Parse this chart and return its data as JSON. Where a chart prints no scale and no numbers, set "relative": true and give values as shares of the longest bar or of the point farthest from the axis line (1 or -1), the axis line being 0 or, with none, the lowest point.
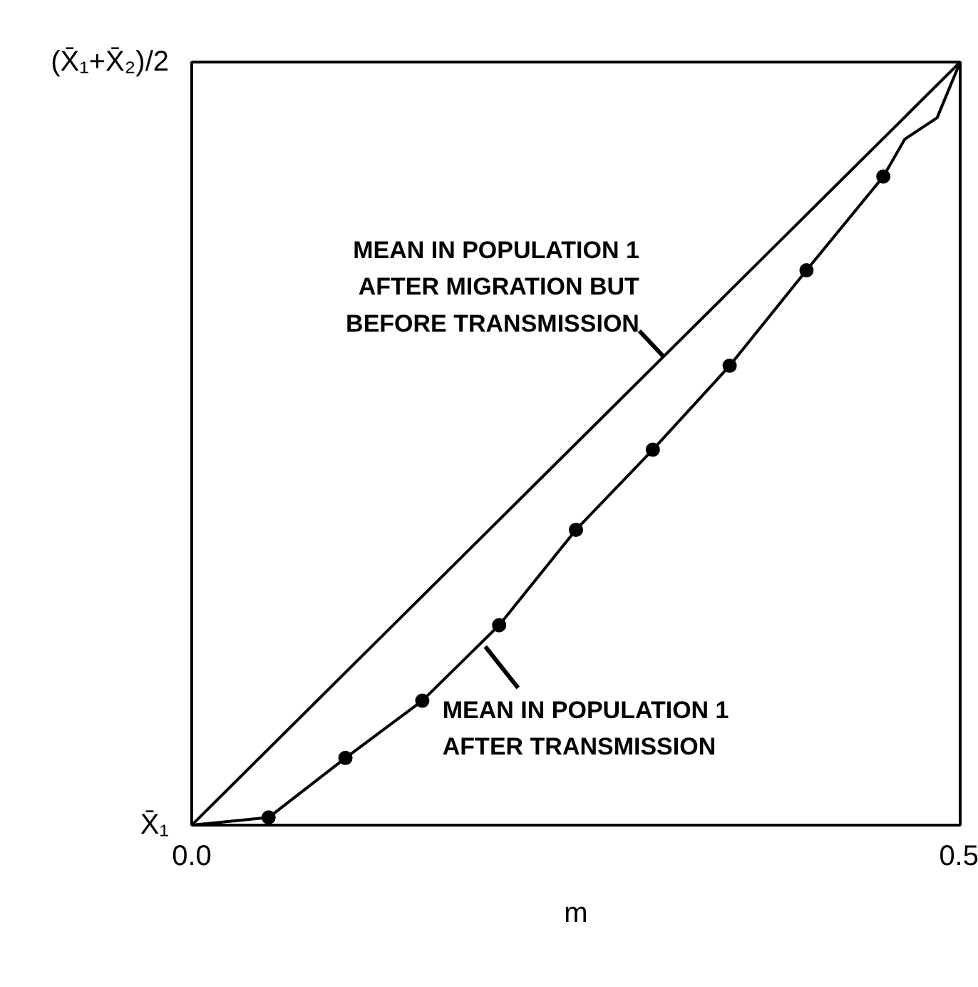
{
  "chart_data": {
    "type": "line",
    "xlabel": "m",
    "xlim": [
      0,
      0.5
    ],
    "ylim": [
      0,
      1
    ],
    "xticks": [
      {
        "value": 0,
        "label": "0.0"
      },
      {
        "value": 0.5,
        "label": "0.5"
      }
    ],
    "relative": true,
    "series": [
      {
        "color": "#000000",
        "marker": "none",
        "x": [
          0,
          0.5
        ],
        "values": [
          0,
          1
        ]
      },
      {
        "color": "#000000",
        "marker": "none",
        "x": [
          0,
          0.05,
          0.1,
          0.15,
          0.2,
          0.25,
          0.3,
          0.35,
          0.4,
          0.45,
          0.464,
          0.485,
          0.5
        ],
        "values": [
          0,
          0.01,
          0.088,
          0.163,
          0.262,
          0.387,
          0.492,
          0.602,
          0.727,
          0.85,
          0.899,
          0.927,
          1
        ]
      },
      {
        "type": "scatter",
        "color": "#000000",
        "marker": "circle",
        "x": [
          0.05,
          0.1,
          0.15,
          0.2,
          0.25,
          0.3,
          0.35,
          0.4,
          0.45
        ],
        "values": [
          0.01,
          0.088,
          0.163,
          0.262,
          0.387,
          0.492,
          0.602,
          0.727,
          0.85
        ]
      }
    ],
    "annotations": [
      {
        "text": "MEAN IN POPULATION 1\nAFTER MIGRATION BUT\nBEFORE TRANSMISSION",
        "x": 0.307,
        "y": 0.614
      },
      {
        "text": "MEAN IN POPULATION 1\nAFTER TRANSMISSION",
        "x": 0.191,
        "y": 0.234
      },
      "(X̄₁+X̄₂)/2",
      "X̄₁"
    ]
  }
}
